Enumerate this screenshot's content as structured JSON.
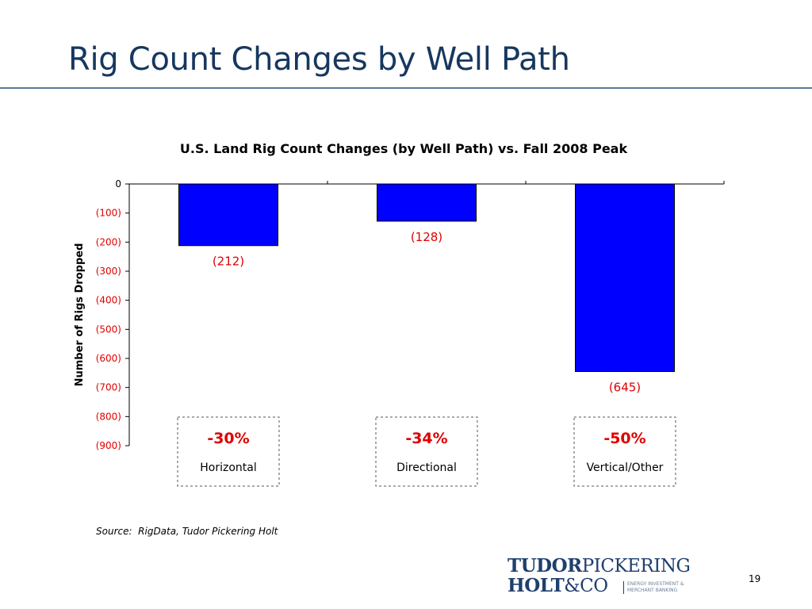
{
  "slide": {
    "title": "Rig Count Changes by Well Path",
    "source": "Source:  RigData, Tudor Pickering Holt",
    "page_number": "19"
  },
  "logo": {
    "line1_a": "TUDOR",
    "line1_b": "PICKERING",
    "line2_a": "HOLT",
    "line2_b": "&CO",
    "tagline_1": "ENERGY INVESTMENT &",
    "tagline_2": "MERCHANT BANKING"
  },
  "colors": {
    "title": "#17375e",
    "bar": "#0000ff",
    "data_label": "#e00000",
    "percent_label": "#e00000"
  },
  "chart_data": {
    "type": "bar",
    "title": "U.S. Land Rig Count Changes (by Well Path) vs. Fall 2008 Peak",
    "ylabel": "Number of Rigs Dropped",
    "xlabel": "",
    "ylim": [
      -900,
      0
    ],
    "yticks": [
      0,
      -100,
      -200,
      -300,
      -400,
      -500,
      -600,
      -700,
      -800,
      -900
    ],
    "ytick_labels": [
      "0",
      "(100)",
      "(200)",
      "(300)",
      "(400)",
      "(500)",
      "(600)",
      "(700)",
      "(800)",
      "(900)"
    ],
    "categories": [
      "Horizontal",
      "Directional",
      "Vertical/Other"
    ],
    "values": [
      -212,
      -128,
      -645
    ],
    "data_labels": [
      "(212)",
      "(128)",
      "(645)"
    ],
    "percent_changes": [
      "-30%",
      "-34%",
      "-50%"
    ],
    "grid": false,
    "legend": "none"
  }
}
